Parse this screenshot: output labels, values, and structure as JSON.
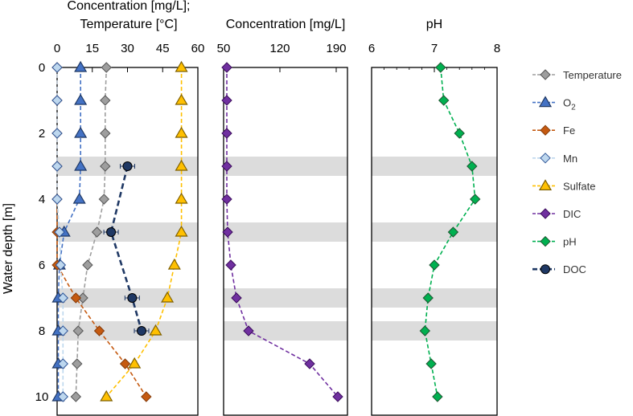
{
  "chart_data": {
    "type": "line",
    "ylabel": "Water depth [m]",
    "y_ticks": [
      "0",
      "2",
      "4",
      "6",
      "8",
      "10"
    ],
    "y_range": [
      0,
      10.3
    ],
    "shaded_depths": [
      3,
      5,
      7,
      8
    ],
    "panels": [
      {
        "id": "p1",
        "title_lines": [
          "Concentration [mg/L];",
          "Temperature [°C]"
        ],
        "x_range": [
          0,
          60
        ],
        "x_ticks": [
          "0",
          "15",
          "30",
          "45",
          "60"
        ],
        "x_tick_values": [
          0,
          15,
          30,
          45,
          60
        ],
        "series": [
          {
            "name": "Temperature",
            "color": "#9e9e9e",
            "edge": "#555555",
            "marker": "diamond",
            "points": [
              [
                21,
                0
              ],
              [
                20.5,
                1
              ],
              [
                20.5,
                2
              ],
              [
                20.5,
                3
              ],
              [
                20,
                4
              ],
              [
                17,
                5
              ],
              [
                13,
                6
              ],
              [
                11,
                7
              ],
              [
                9,
                8
              ],
              [
                8.5,
                9
              ],
              [
                8,
                10
              ]
            ]
          },
          {
            "name": "O2",
            "color": "#4472c4",
            "edge": "#1f3864",
            "marker": "triangle",
            "points": [
              [
                10,
                0
              ],
              [
                10,
                1
              ],
              [
                10,
                2
              ],
              [
                10,
                3
              ],
              [
                9.5,
                4
              ],
              [
                3,
                5
              ],
              [
                1,
                6
              ],
              [
                0.5,
                7
              ],
              [
                0.5,
                8
              ],
              [
                0.5,
                9
              ],
              [
                0.5,
                10
              ]
            ]
          },
          {
            "name": "Fe",
            "color": "#c55a11",
            "edge": "#843c0c",
            "marker": "diamond",
            "points": [
              [
                0,
                0
              ],
              [
                0,
                1
              ],
              [
                0,
                2
              ],
              [
                0,
                3
              ],
              [
                0,
                4
              ],
              [
                0,
                5
              ],
              [
                0,
                6
              ],
              [
                8,
                7
              ],
              [
                18,
                8
              ],
              [
                29,
                9
              ],
              [
                38,
                10
              ]
            ]
          },
          {
            "name": "Mn",
            "color": "#bdd7ee",
            "edge": "#2f5597",
            "marker": "diamond",
            "points": [
              [
                0,
                0
              ],
              [
                0,
                1
              ],
              [
                0,
                2
              ],
              [
                0,
                3
              ],
              [
                0,
                4
              ],
              [
                1,
                5
              ],
              [
                1.5,
                6
              ],
              [
                2.5,
                7
              ],
              [
                2.5,
                8
              ],
              [
                2.5,
                9
              ],
              [
                2.5,
                10
              ]
            ]
          },
          {
            "name": "Sulfate",
            "color": "#ffc000",
            "edge": "#7f6000",
            "marker": "triangle",
            "points": [
              [
                53,
                0
              ],
              [
                53,
                1
              ],
              [
                53,
                2
              ],
              [
                53,
                3
              ],
              [
                53,
                4
              ],
              [
                53,
                5
              ],
              [
                50,
                6
              ],
              [
                47,
                7
              ],
              [
                42,
                8
              ],
              [
                33,
                9
              ],
              [
                21,
                10
              ]
            ]
          },
          {
            "name": "DOC",
            "color": "#1f3864",
            "edge": "#000000",
            "marker": "circle",
            "thick": true,
            "points": [
              [
                30,
                3
              ],
              [
                23,
                5
              ],
              [
                32,
                7
              ],
              [
                36,
                8
              ]
            ]
          }
        ]
      },
      {
        "id": "p2",
        "title_lines": [
          "Concentration [mg/L]"
        ],
        "x_range": [
          50,
          204
        ],
        "x_ticks": [
          "50",
          "120",
          "190"
        ],
        "x_tick_values": [
          50,
          120,
          190
        ],
        "series": [
          {
            "name": "DIC",
            "color": "#7030a0",
            "edge": "#3b0d5c",
            "marker": "diamond",
            "points": [
              [
                54,
                0
              ],
              [
                54,
                1
              ],
              [
                54,
                2
              ],
              [
                54,
                3
              ],
              [
                54,
                4
              ],
              [
                55,
                5
              ],
              [
                59,
                6
              ],
              [
                66,
                7
              ],
              [
                81,
                8
              ],
              [
                157,
                9
              ],
              [
                192,
                10
              ]
            ]
          }
        ]
      },
      {
        "id": "p3",
        "title_lines": [
          "pH"
        ],
        "x_range": [
          6,
          8
        ],
        "x_ticks": [
          "6",
          "7",
          "8"
        ],
        "x_tick_values": [
          6,
          7,
          8
        ],
        "series": [
          {
            "name": "pH",
            "color": "#00b050",
            "edge": "#1e5631",
            "marker": "diamond",
            "points": [
              [
                7.1,
                0
              ],
              [
                7.15,
                1
              ],
              [
                7.4,
                2
              ],
              [
                7.6,
                3
              ],
              [
                7.65,
                4
              ],
              [
                7.3,
                5
              ],
              [
                7.0,
                6
              ],
              [
                6.9,
                7
              ],
              [
                6.85,
                8
              ],
              [
                6.95,
                9
              ],
              [
                7.05,
                10
              ]
            ]
          }
        ]
      }
    ],
    "legend": [
      {
        "label": "Temperature",
        "color": "#9e9e9e",
        "edge": "#555555",
        "marker": "diamond"
      },
      {
        "label": "O",
        "sub": "2",
        "color": "#4472c4",
        "edge": "#1f3864",
        "marker": "triangle"
      },
      {
        "label": "Fe",
        "color": "#c55a11",
        "edge": "#843c0c",
        "marker": "diamond"
      },
      {
        "label": "Mn",
        "color": "#bdd7ee",
        "edge": "#2f5597",
        "marker": "diamond"
      },
      {
        "label": "Sulfate",
        "color": "#ffc000",
        "edge": "#7f6000",
        "marker": "triangle"
      },
      {
        "label": "DIC",
        "color": "#7030a0",
        "edge": "#3b0d5c",
        "marker": "diamond"
      },
      {
        "label": "pH",
        "color": "#00b050",
        "edge": "#1e5631",
        "marker": "diamond"
      },
      {
        "label": "DOC",
        "color": "#1f3864",
        "edge": "#000000",
        "marker": "circle",
        "thick": true
      }
    ]
  }
}
